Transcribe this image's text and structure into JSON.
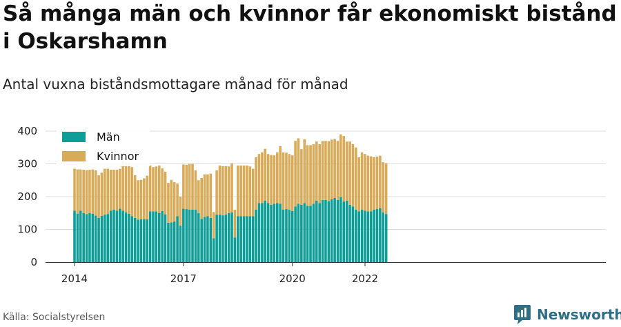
{
  "title": "Så många män och kvinnor får ekonomiskt bistånd i Oskarshamn",
  "subtitle": "Antal vuxna biståndsmottagare månad för månad",
  "source": "Källa: Socialstyrelsen",
  "brand": "Newsworthy",
  "colors": {
    "men": "#0f9e97",
    "women": "#d8ab5a",
    "grid": "#dcdcdc",
    "brand": "#2f6f86"
  },
  "chart_data": {
    "type": "bar",
    "stacked": true,
    "start": "2014-01",
    "interval": "month",
    "ylim": [
      0,
      400
    ],
    "yticks": [
      0,
      100,
      200,
      300,
      400
    ],
    "xticks": [
      "2014",
      "2017",
      "2020",
      "2022"
    ],
    "legend": "top-left",
    "series": [
      {
        "name": "Män",
        "values": [
          157,
          148,
          157,
          150,
          147,
          150,
          148,
          142,
          135,
          141,
          145,
          147,
          157,
          160,
          157,
          163,
          157,
          152,
          148,
          140,
          135,
          130,
          131,
          131,
          131,
          155,
          155,
          155,
          150,
          156,
          146,
          120,
          121,
          124,
          140,
          112,
          163,
          162,
          160,
          160,
          160,
          150,
          132,
          138,
          140,
          135,
          73,
          145,
          145,
          143,
          145,
          150,
          152,
          75,
          140,
          140,
          140,
          140,
          140,
          140,
          160,
          180,
          180,
          188,
          180,
          175,
          178,
          180,
          178,
          160,
          162,
          160,
          156,
          170,
          178,
          175,
          180,
          172,
          172,
          178,
          188,
          180,
          190,
          190,
          186,
          192,
          196,
          190,
          198,
          185,
          188,
          175,
          170,
          160,
          155,
          160,
          157,
          155,
          155,
          160,
          162,
          165,
          152,
          147
        ],
        "extra_ignored": null
      },
      {
        "name": "Kvinnor",
        "values": [
          128,
          135,
          126,
          132,
          134,
          132,
          135,
          138,
          130,
          132,
          140,
          138,
          125,
          122,
          125,
          122,
          153,
          152,
          155,
          150,
          130,
          120,
          120,
          125,
          133,
          140,
          135,
          137,
          145,
          130,
          130,
          122,
          130,
          120,
          100,
          88,
          135,
          135,
          140,
          140,
          120,
          100,
          125,
          130,
          128,
          135,
          80,
          135,
          150,
          150,
          148,
          142,
          150,
          85,
          155,
          155,
          155,
          155,
          152,
          145,
          160,
          150,
          155,
          158,
          150,
          152,
          148,
          155,
          176,
          175,
          172,
          170,
          170,
          200,
          200,
          170,
          195,
          185,
          185,
          182,
          180,
          180,
          180,
          180,
          183,
          182,
          180,
          180,
          192,
          200,
          180,
          193,
          190,
          190,
          165,
          175,
          173,
          170,
          168,
          160,
          160,
          160,
          153,
          155
        ]
      }
    ]
  }
}
